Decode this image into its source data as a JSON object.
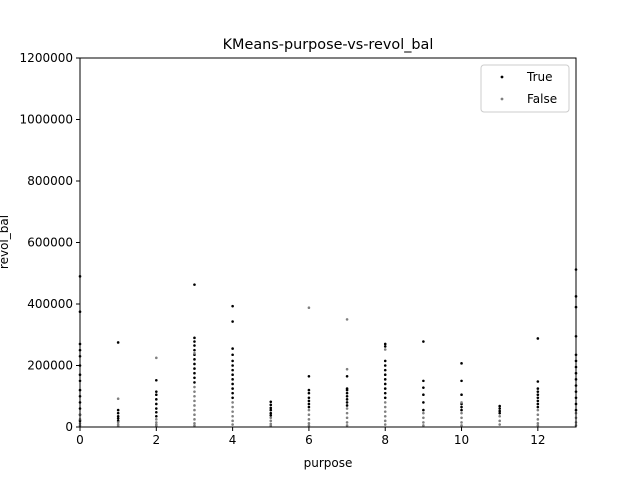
{
  "chart_data": {
    "type": "scatter",
    "title": "KMeans-purpose-vs-revol_bal",
    "xlabel": "purpose",
    "ylabel": "revol_bal",
    "xlim": [
      0,
      13
    ],
    "ylim": [
      0,
      1200000
    ],
    "xticks": [
      0,
      2,
      4,
      6,
      8,
      10,
      12
    ],
    "yticks": [
      0,
      200000,
      400000,
      600000,
      800000,
      1000000,
      1200000
    ],
    "legend_position": "top-right",
    "grid": false,
    "series": [
      {
        "name": "True",
        "color": "#000000",
        "points": [
          [
            0,
            490000
          ],
          [
            0,
            375000
          ],
          [
            0,
            270000
          ],
          [
            0,
            250000
          ],
          [
            0,
            230000
          ],
          [
            0,
            200000
          ],
          [
            0,
            170000
          ],
          [
            0,
            150000
          ],
          [
            0,
            120000
          ],
          [
            0,
            100000
          ],
          [
            0,
            80000
          ],
          [
            0,
            60000
          ],
          [
            0,
            40000
          ],
          [
            0,
            20000
          ],
          [
            1,
            275000
          ],
          [
            1,
            55000
          ],
          [
            1,
            45000
          ],
          [
            1,
            35000
          ],
          [
            1,
            28000
          ],
          [
            1,
            20000
          ],
          [
            2,
            152000
          ],
          [
            2,
            115000
          ],
          [
            2,
            105000
          ],
          [
            2,
            90000
          ],
          [
            2,
            75000
          ],
          [
            2,
            60000
          ],
          [
            2,
            48000
          ],
          [
            2,
            35000
          ],
          [
            3,
            463000
          ],
          [
            3,
            290000
          ],
          [
            3,
            278000
          ],
          [
            3,
            265000
          ],
          [
            3,
            250000
          ],
          [
            3,
            235000
          ],
          [
            3,
            220000
          ],
          [
            3,
            205000
          ],
          [
            3,
            190000
          ],
          [
            3,
            175000
          ],
          [
            3,
            160000
          ],
          [
            3,
            145000
          ],
          [
            4,
            393000
          ],
          [
            4,
            343000
          ],
          [
            4,
            255000
          ],
          [
            4,
            235000
          ],
          [
            4,
            215000
          ],
          [
            4,
            200000
          ],
          [
            4,
            185000
          ],
          [
            4,
            170000
          ],
          [
            4,
            155000
          ],
          [
            4,
            140000
          ],
          [
            4,
            125000
          ],
          [
            4,
            110000
          ],
          [
            4,
            95000
          ],
          [
            5,
            82000
          ],
          [
            5,
            72000
          ],
          [
            5,
            62000
          ],
          [
            5,
            55000
          ],
          [
            5,
            45000
          ],
          [
            5,
            38000
          ],
          [
            6,
            165000
          ],
          [
            6,
            120000
          ],
          [
            6,
            110000
          ],
          [
            6,
            95000
          ],
          [
            6,
            85000
          ],
          [
            6,
            75000
          ],
          [
            6,
            65000
          ],
          [
            7,
            165000
          ],
          [
            7,
            125000
          ],
          [
            7,
            120000
          ],
          [
            7,
            110000
          ],
          [
            7,
            100000
          ],
          [
            7,
            90000
          ],
          [
            7,
            80000
          ],
          [
            7,
            70000
          ],
          [
            8,
            270000
          ],
          [
            8,
            262000
          ],
          [
            8,
            215000
          ],
          [
            8,
            200000
          ],
          [
            8,
            185000
          ],
          [
            8,
            170000
          ],
          [
            8,
            155000
          ],
          [
            8,
            140000
          ],
          [
            8,
            125000
          ],
          [
            8,
            110000
          ],
          [
            8,
            95000
          ],
          [
            9,
            278000
          ],
          [
            9,
            150000
          ],
          [
            9,
            128000
          ],
          [
            9,
            105000
          ],
          [
            9,
            80000
          ],
          [
            9,
            55000
          ],
          [
            10,
            207000
          ],
          [
            10,
            150000
          ],
          [
            10,
            105000
          ],
          [
            10,
            75000
          ],
          [
            10,
            65000
          ],
          [
            10,
            55000
          ],
          [
            11,
            68000
          ],
          [
            11,
            60000
          ],
          [
            11,
            52000
          ],
          [
            11,
            45000
          ],
          [
            12,
            288000
          ],
          [
            12,
            148000
          ],
          [
            12,
            125000
          ],
          [
            12,
            115000
          ],
          [
            12,
            105000
          ],
          [
            12,
            95000
          ],
          [
            12,
            85000
          ],
          [
            12,
            75000
          ],
          [
            12,
            65000
          ],
          [
            13,
            512000
          ],
          [
            13,
            425000
          ],
          [
            13,
            390000
          ],
          [
            13,
            295000
          ],
          [
            13,
            235000
          ],
          [
            13,
            215000
          ],
          [
            13,
            195000
          ],
          [
            13,
            175000
          ],
          [
            13,
            155000
          ],
          [
            13,
            135000
          ],
          [
            13,
            115000
          ],
          [
            13,
            95000
          ],
          [
            13,
            75000
          ],
          [
            13,
            55000
          ]
        ]
      },
      {
        "name": "False",
        "color": "#808080",
        "points": [
          [
            0,
            40000
          ],
          [
            0,
            25000
          ],
          [
            0,
            12000
          ],
          [
            0,
            5000
          ],
          [
            1,
            92000
          ],
          [
            1,
            15000
          ],
          [
            1,
            8000
          ],
          [
            1,
            3000
          ],
          [
            2,
            225000
          ],
          [
            2,
            25000
          ],
          [
            2,
            15000
          ],
          [
            2,
            8000
          ],
          [
            2,
            3000
          ],
          [
            3,
            240000
          ],
          [
            3,
            130000
          ],
          [
            3,
            115000
          ],
          [
            3,
            100000
          ],
          [
            3,
            85000
          ],
          [
            3,
            70000
          ],
          [
            3,
            55000
          ],
          [
            3,
            40000
          ],
          [
            3,
            25000
          ],
          [
            3,
            12000
          ],
          [
            3,
            5000
          ],
          [
            4,
            80000
          ],
          [
            4,
            65000
          ],
          [
            4,
            50000
          ],
          [
            4,
            35000
          ],
          [
            4,
            20000
          ],
          [
            4,
            8000
          ],
          [
            5,
            30000
          ],
          [
            5,
            20000
          ],
          [
            5,
            10000
          ],
          [
            5,
            4000
          ],
          [
            6,
            388000
          ],
          [
            6,
            55000
          ],
          [
            6,
            40000
          ],
          [
            6,
            25000
          ],
          [
            6,
            12000
          ],
          [
            6,
            5000
          ],
          [
            7,
            350000
          ],
          [
            7,
            188000
          ],
          [
            7,
            60000
          ],
          [
            7,
            45000
          ],
          [
            7,
            30000
          ],
          [
            7,
            15000
          ],
          [
            7,
            5000
          ],
          [
            8,
            252000
          ],
          [
            8,
            80000
          ],
          [
            8,
            65000
          ],
          [
            8,
            50000
          ],
          [
            8,
            35000
          ],
          [
            8,
            20000
          ],
          [
            8,
            8000
          ],
          [
            9,
            45000
          ],
          [
            9,
            30000
          ],
          [
            9,
            15000
          ],
          [
            9,
            5000
          ],
          [
            10,
            80000
          ],
          [
            10,
            45000
          ],
          [
            10,
            30000
          ],
          [
            10,
            15000
          ],
          [
            10,
            5000
          ],
          [
            11,
            35000
          ],
          [
            11,
            20000
          ],
          [
            11,
            8000
          ],
          [
            12,
            55000
          ],
          [
            12,
            40000
          ],
          [
            12,
            25000
          ],
          [
            12,
            12000
          ],
          [
            12,
            5000
          ],
          [
            13,
            45000
          ],
          [
            13,
            30000
          ],
          [
            13,
            15000
          ],
          [
            13,
            5000
          ]
        ]
      }
    ]
  }
}
